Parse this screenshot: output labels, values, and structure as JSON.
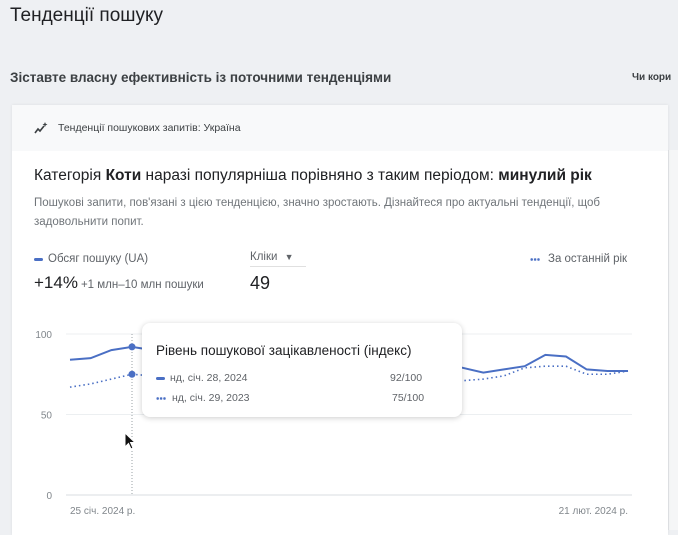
{
  "page": {
    "title": "Тенденції пошуку",
    "subtitle": "Зіставте власну ефективність із поточними тенденціями",
    "helpful": "Чи кори"
  },
  "card": {
    "header": "Тенденції пошукових запитів: Україна",
    "headline": {
      "pre": "Категорія ",
      "category": "Коти",
      "mid": " наразі популярніша порівняно з таким періодом: ",
      "period": "минулий рік"
    },
    "description": "Пошукові запити, пов'язані з цією тенденцією, значно зростають. Дізнайтеся про актуальні тенденції, щоб задовольнити попит.",
    "metric": {
      "legend": "Обсяг пошуку (UA)",
      "change": "+14%",
      "range": "+1 млн–10 млн пошуки"
    },
    "clicks": {
      "label": "Кліки",
      "value": "49"
    },
    "compare_legend": "За останній рік"
  },
  "tooltip": {
    "title": "Рівень пошукової зацікавленості (індекс)",
    "rows": [
      {
        "date": "нд, січ. 28, 2024",
        "value": "92/100"
      },
      {
        "date": "нд, січ. 29, 2023",
        "value": "75/100"
      }
    ]
  },
  "chart_data": {
    "type": "line",
    "ylim": [
      0,
      100
    ],
    "yticks": [
      "0",
      "50",
      "100"
    ],
    "xtick_labels": [
      "25 січ. 2024 р.",
      "21 лют. 2024 р."
    ],
    "x": [
      "2024-01-25",
      "2024-01-26",
      "2024-01-27",
      "2024-01-28",
      "2024-01-29",
      "2024-01-30",
      "2024-01-31",
      "2024-02-01",
      "2024-02-02",
      "2024-02-03",
      "2024-02-04",
      "2024-02-05",
      "2024-02-06",
      "2024-02-07",
      "2024-02-08",
      "2024-02-09",
      "2024-02-10",
      "2024-02-11",
      "2024-02-12",
      "2024-02-13",
      "2024-02-14",
      "2024-02-15",
      "2024-02-16",
      "2024-02-17",
      "2024-02-18",
      "2024-02-19",
      "2024-02-20",
      "2024-02-21"
    ],
    "series": [
      {
        "name": "Обсяг пошуку (UA)",
        "style": "solid",
        "values": [
          84,
          85,
          90,
          92,
          90,
          88,
          87,
          86,
          86,
          85,
          85,
          84,
          84,
          84,
          83,
          83,
          83,
          82,
          82,
          79,
          76,
          78,
          80,
          87,
          86,
          78,
          77,
          77
        ]
      },
      {
        "name": "За останній рік",
        "style": "dotted",
        "values": [
          67,
          69,
          72,
          75,
          74,
          74,
          73,
          73,
          72,
          72,
          72,
          72,
          72,
          71,
          71,
          71,
          71,
          71,
          71,
          71,
          72,
          74,
          79,
          80,
          80,
          75,
          75,
          77
        ]
      }
    ],
    "highlight_index": 3,
    "color": "#4a6fc4",
    "grid": true
  }
}
